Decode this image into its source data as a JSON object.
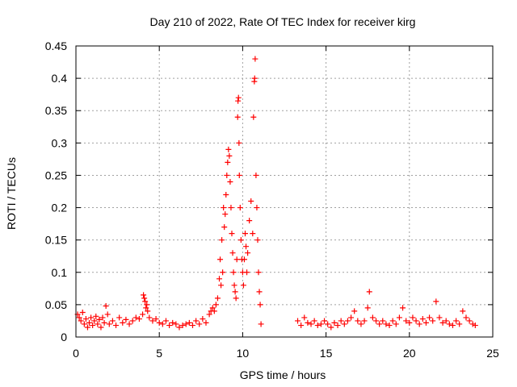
{
  "chart_data": {
    "type": "scatter",
    "title": "Day 210 of 2022, Rate Of TEC Index for receiver kirg",
    "xlabel": "GPS time / hours",
    "ylabel": "ROTI / TECUs",
    "xlim": [
      0,
      25
    ],
    "ylim": [
      0,
      0.45
    ],
    "xticks": [
      0,
      5,
      10,
      15,
      20,
      25
    ],
    "xtick_labels": [
      "0",
      "5",
      "10",
      "15",
      "20",
      "25"
    ],
    "yticks": [
      0,
      0.05,
      0.1,
      0.15,
      0.2,
      0.25,
      0.3,
      0.35,
      0.4,
      0.45
    ],
    "ytick_labels": [
      "0",
      "0.05",
      "0.1",
      "0.15",
      "0.2",
      "0.25",
      "0.3",
      "0.35",
      "0.4",
      "0.45"
    ],
    "grid": true,
    "marker": "+",
    "color": "#ff0000",
    "points": [
      [
        0.1,
        0.035
      ],
      [
        0.2,
        0.03
      ],
      [
        0.3,
        0.025
      ],
      [
        0.4,
        0.038
      ],
      [
        0.5,
        0.02
      ],
      [
        0.6,
        0.028
      ],
      [
        0.7,
        0.015
      ],
      [
        0.8,
        0.022
      ],
      [
        0.9,
        0.03
      ],
      [
        1.0,
        0.018
      ],
      [
        1.1,
        0.025
      ],
      [
        1.2,
        0.032
      ],
      [
        1.3,
        0.02
      ],
      [
        1.4,
        0.027
      ],
      [
        1.5,
        0.015
      ],
      [
        1.6,
        0.03
      ],
      [
        1.7,
        0.022
      ],
      [
        1.8,
        0.048
      ],
      [
        1.9,
        0.035
      ],
      [
        2.0,
        0.02
      ],
      [
        2.2,
        0.025
      ],
      [
        2.4,
        0.018
      ],
      [
        2.6,
        0.03
      ],
      [
        2.8,
        0.022
      ],
      [
        3.0,
        0.027
      ],
      [
        3.2,
        0.02
      ],
      [
        3.4,
        0.025
      ],
      [
        3.6,
        0.03
      ],
      [
        3.8,
        0.028
      ],
      [
        4.0,
        0.035
      ],
      [
        4.05,
        0.065
      ],
      [
        4.1,
        0.06
      ],
      [
        4.15,
        0.055
      ],
      [
        4.2,
        0.045
      ],
      [
        4.25,
        0.05
      ],
      [
        4.3,
        0.04
      ],
      [
        4.4,
        0.03
      ],
      [
        4.6,
        0.025
      ],
      [
        4.8,
        0.028
      ],
      [
        5.0,
        0.022
      ],
      [
        5.2,
        0.02
      ],
      [
        5.4,
        0.025
      ],
      [
        5.6,
        0.018
      ],
      [
        5.8,
        0.022
      ],
      [
        6.0,
        0.02
      ],
      [
        6.2,
        0.015
      ],
      [
        6.4,
        0.018
      ],
      [
        6.6,
        0.02
      ],
      [
        6.8,
        0.022
      ],
      [
        7.0,
        0.018
      ],
      [
        7.2,
        0.025
      ],
      [
        7.4,
        0.02
      ],
      [
        7.6,
        0.028
      ],
      [
        7.8,
        0.022
      ],
      [
        8.0,
        0.035
      ],
      [
        8.1,
        0.04
      ],
      [
        8.2,
        0.045
      ],
      [
        8.3,
        0.04
      ],
      [
        8.4,
        0.05
      ],
      [
        8.5,
        0.06
      ],
      [
        8.6,
        0.09
      ],
      [
        8.65,
        0.12
      ],
      [
        8.7,
        0.08
      ],
      [
        8.75,
        0.15
      ],
      [
        8.8,
        0.1
      ],
      [
        8.85,
        0.2
      ],
      [
        8.9,
        0.17
      ],
      [
        8.95,
        0.19
      ],
      [
        9.0,
        0.22
      ],
      [
        9.05,
        0.25
      ],
      [
        9.1,
        0.27
      ],
      [
        9.15,
        0.29
      ],
      [
        9.2,
        0.28
      ],
      [
        9.25,
        0.24
      ],
      [
        9.3,
        0.2
      ],
      [
        9.35,
        0.16
      ],
      [
        9.4,
        0.13
      ],
      [
        9.45,
        0.1
      ],
      [
        9.5,
        0.08
      ],
      [
        9.55,
        0.07
      ],
      [
        9.6,
        0.06
      ],
      [
        9.65,
        0.12
      ],
      [
        9.7,
        0.34
      ],
      [
        9.72,
        0.365
      ],
      [
        9.75,
        0.37
      ],
      [
        9.78,
        0.3
      ],
      [
        9.8,
        0.25
      ],
      [
        9.85,
        0.2
      ],
      [
        9.9,
        0.15
      ],
      [
        9.95,
        0.12
      ],
      [
        10.0,
        0.1
      ],
      [
        10.05,
        0.08
      ],
      [
        10.1,
        0.12
      ],
      [
        10.15,
        0.16
      ],
      [
        10.2,
        0.14
      ],
      [
        10.25,
        0.1
      ],
      [
        10.3,
        0.13
      ],
      [
        10.4,
        0.18
      ],
      [
        10.5,
        0.21
      ],
      [
        10.6,
        0.16
      ],
      [
        10.65,
        0.34
      ],
      [
        10.7,
        0.395
      ],
      [
        10.72,
        0.4
      ],
      [
        10.75,
        0.43
      ],
      [
        10.8,
        0.25
      ],
      [
        10.85,
        0.2
      ],
      [
        10.9,
        0.15
      ],
      [
        10.95,
        0.1
      ],
      [
        11.0,
        0.07
      ],
      [
        11.05,
        0.05
      ],
      [
        11.1,
        0.02
      ],
      [
        13.3,
        0.025
      ],
      [
        13.5,
        0.018
      ],
      [
        13.7,
        0.03
      ],
      [
        13.9,
        0.022
      ],
      [
        14.1,
        0.02
      ],
      [
        14.3,
        0.025
      ],
      [
        14.5,
        0.018
      ],
      [
        14.7,
        0.02
      ],
      [
        14.9,
        0.025
      ],
      [
        15.1,
        0.02
      ],
      [
        15.3,
        0.015
      ],
      [
        15.5,
        0.022
      ],
      [
        15.7,
        0.018
      ],
      [
        15.9,
        0.025
      ],
      [
        16.1,
        0.02
      ],
      [
        16.3,
        0.025
      ],
      [
        16.5,
        0.03
      ],
      [
        16.7,
        0.04
      ],
      [
        16.9,
        0.025
      ],
      [
        17.1,
        0.02
      ],
      [
        17.3,
        0.025
      ],
      [
        17.5,
        0.045
      ],
      [
        17.6,
        0.07
      ],
      [
        17.8,
        0.03
      ],
      [
        18.0,
        0.025
      ],
      [
        18.2,
        0.02
      ],
      [
        18.4,
        0.025
      ],
      [
        18.6,
        0.02
      ],
      [
        18.8,
        0.018
      ],
      [
        19.0,
        0.025
      ],
      [
        19.2,
        0.02
      ],
      [
        19.4,
        0.03
      ],
      [
        19.6,
        0.045
      ],
      [
        19.8,
        0.025
      ],
      [
        20.0,
        0.022
      ],
      [
        20.2,
        0.03
      ],
      [
        20.4,
        0.025
      ],
      [
        20.6,
        0.02
      ],
      [
        20.8,
        0.028
      ],
      [
        21.0,
        0.022
      ],
      [
        21.2,
        0.03
      ],
      [
        21.4,
        0.025
      ],
      [
        21.6,
        0.055
      ],
      [
        21.8,
        0.03
      ],
      [
        22.0,
        0.022
      ],
      [
        22.2,
        0.025
      ],
      [
        22.4,
        0.02
      ],
      [
        22.6,
        0.018
      ],
      [
        22.8,
        0.025
      ],
      [
        23.0,
        0.02
      ],
      [
        23.2,
        0.04
      ],
      [
        23.4,
        0.03
      ],
      [
        23.6,
        0.025
      ],
      [
        23.8,
        0.02
      ],
      [
        23.95,
        0.018
      ]
    ]
  }
}
